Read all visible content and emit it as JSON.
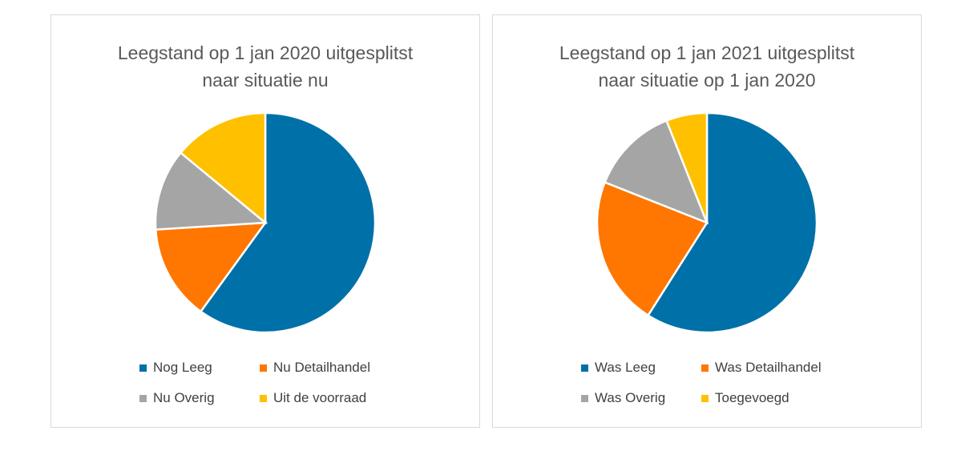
{
  "chart_data": [
    {
      "type": "pie",
      "title_line1": "Leegstand op 1 jan 2020 uitgesplitst",
      "title_line2": "naar situatie nu",
      "legend_position": "bottom",
      "series": [
        {
          "name": "Nog Leeg",
          "value": 60,
          "color": "#0070A8"
        },
        {
          "name": "Nu Detailhandel",
          "value": 14,
          "color": "#FF7600"
        },
        {
          "name": "Nu Overig",
          "value": 12,
          "color": "#A5A5A5"
        },
        {
          "name": "Uit de voorraad",
          "value": 14,
          "color": "#FFC000"
        }
      ]
    },
    {
      "type": "pie",
      "title_line1": "Leegstand op 1 jan 2021 uitgesplitst",
      "title_line2": "naar situatie op 1 jan 2020",
      "legend_position": "bottom",
      "series": [
        {
          "name": "Was Leeg",
          "value": 59,
          "color": "#0070A8"
        },
        {
          "name": "Was Detailhandel",
          "value": 22,
          "color": "#FF7600"
        },
        {
          "name": "Was Overig",
          "value": 13,
          "color": "#A5A5A5"
        },
        {
          "name": "Toegevoegd",
          "value": 6,
          "color": "#FFC000"
        }
      ]
    }
  ]
}
